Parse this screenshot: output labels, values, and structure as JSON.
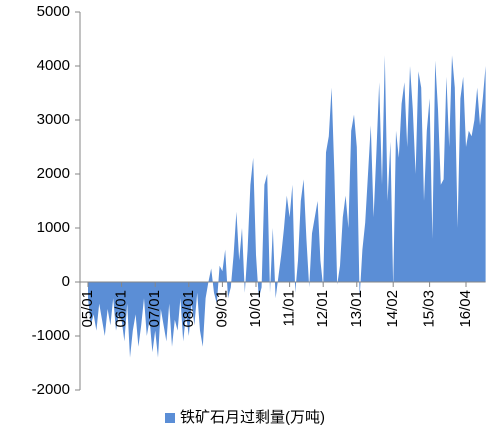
{
  "chart_data": {
    "type": "area",
    "categories": [
      "05/01",
      null,
      null,
      null,
      null,
      null,
      null,
      null,
      null,
      null,
      null,
      null,
      "06/01",
      null,
      null,
      null,
      null,
      null,
      null,
      null,
      null,
      null,
      null,
      null,
      "07/01",
      null,
      null,
      null,
      null,
      null,
      null,
      null,
      null,
      null,
      null,
      null,
      "08/01",
      null,
      null,
      null,
      null,
      null,
      null,
      null,
      null,
      null,
      null,
      null,
      "09/01",
      null,
      null,
      null,
      null,
      null,
      null,
      null,
      null,
      null,
      null,
      null,
      "10/01",
      null,
      null,
      null,
      null,
      null,
      null,
      null,
      null,
      null,
      null,
      null,
      "11/01",
      null,
      null,
      null,
      null,
      null,
      null,
      null,
      null,
      null,
      null,
      null,
      "12/01",
      null,
      null,
      null,
      null,
      null,
      null,
      null,
      null,
      null,
      null,
      null,
      "13/01",
      null,
      null,
      null,
      null,
      null,
      null,
      null,
      null,
      null,
      null,
      null,
      null,
      "14/02",
      null,
      null,
      null,
      null,
      null,
      null,
      null,
      null,
      null,
      null,
      null,
      null,
      "15/03",
      null,
      null,
      null,
      null,
      null,
      null,
      null,
      null,
      null,
      null,
      null,
      null,
      "16/04",
      null,
      null,
      null,
      null,
      null,
      null,
      null
    ],
    "series": [
      {
        "name": "铁矿石月过剩量(万吨)",
        "color": "#5b8ed6",
        "values": [
          -300,
          -800,
          -600,
          -900,
          -400,
          -700,
          -1000,
          -500,
          -800,
          -300,
          -900,
          -600,
          -700,
          -1100,
          -400,
          -1400,
          -900,
          -600,
          -1200,
          -800,
          -300,
          -1000,
          -700,
          -1300,
          -900,
          -1400,
          -500,
          -800,
          -1100,
          -400,
          -1200,
          -700,
          -900,
          -300,
          -1100,
          -600,
          -1000,
          -400,
          -800,
          -200,
          -900,
          -1200,
          -300,
          0,
          250,
          -200,
          -400,
          300,
          200,
          600,
          -300,
          -100,
          500,
          1300,
          400,
          1000,
          -200,
          600,
          1800,
          2300,
          500,
          -300,
          -100,
          1800,
          2000,
          -200,
          1000,
          -300,
          100,
          500,
          1000,
          1600,
          1200,
          1800,
          -200,
          400,
          1500,
          1900,
          800,
          -100,
          900,
          1200,
          1500,
          400,
          -100,
          2400,
          2700,
          3600,
          2000,
          -50,
          300,
          1200,
          1600,
          1000,
          2800,
          3100,
          2500,
          -300,
          600,
          1100,
          2000,
          2900,
          1200,
          2400,
          3700,
          1800,
          4200,
          1500,
          2600,
          -100,
          2800,
          2300,
          3300,
          3700,
          2500,
          4000,
          3200,
          2000,
          3900,
          3600,
          1500,
          2800,
          3400,
          800,
          4100,
          3200,
          1800,
          1900,
          3800,
          2500,
          4200,
          3600,
          1000,
          3400,
          3800,
          2500,
          2800,
          2700,
          3000,
          3600,
          2900,
          3400,
          4000
        ]
      }
    ],
    "ylim": [
      -2000,
      5000
    ],
    "yticks": [
      -2000,
      -1000,
      0,
      1000,
      2000,
      3000,
      4000,
      5000
    ],
    "grid": false,
    "legend": "bottom"
  }
}
